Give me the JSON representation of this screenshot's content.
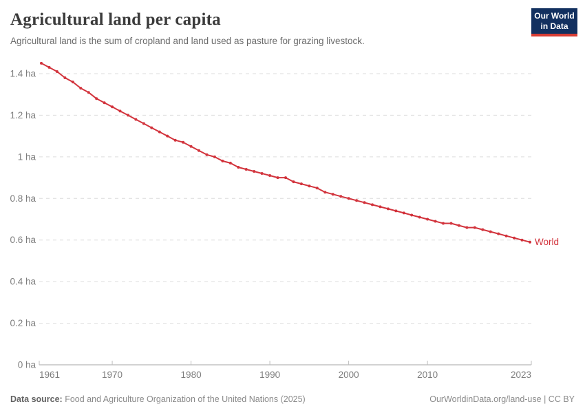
{
  "header": {
    "title": "Agricultural land per capita",
    "subtitle": "Agricultural land is the sum of cropland and land used as pasture for grazing livestock.",
    "logo": {
      "line1": "Our World",
      "line2": "in Data"
    }
  },
  "theme": {
    "title_color": "#3b3b3b",
    "subtitle_color": "#6b6b6b",
    "grid_color": "#dcdcdc",
    "axis_color": "#a5a5a5",
    "tick_color": "#bdbdbd",
    "tick_label_color": "#7d7d7d",
    "logo_bg": "#12305f",
    "logo_accent": "#d73c34",
    "footer_color": "#8a8a8a"
  },
  "chart_data": {
    "type": "line",
    "title": "Agricultural land per capita",
    "unit": "ha",
    "xlabel": "",
    "ylabel": "",
    "xlim": [
      1961,
      2023
    ],
    "ylim": [
      0,
      1.47
    ],
    "grid": "horizontal-dashed",
    "legend_position": "end-of-line-label",
    "x_ticks": [
      {
        "value": 1961,
        "label": "1961"
      },
      {
        "value": 1970,
        "label": "1970"
      },
      {
        "value": 1980,
        "label": "1980"
      },
      {
        "value": 1990,
        "label": "1990"
      },
      {
        "value": 2000,
        "label": "2000"
      },
      {
        "value": 2010,
        "label": "2010"
      },
      {
        "value": 2023,
        "label": "2023"
      }
    ],
    "y_ticks": [
      {
        "value": 0,
        "label": "0 ha"
      },
      {
        "value": 0.2,
        "label": "0.2 ha"
      },
      {
        "value": 0.4,
        "label": "0.4 ha"
      },
      {
        "value": 0.6,
        "label": "0.6 ha"
      },
      {
        "value": 0.8,
        "label": "0.8 ha"
      },
      {
        "value": 1,
        "label": "1 ha"
      },
      {
        "value": 1.2,
        "label": "1.2 ha"
      },
      {
        "value": 1.4,
        "label": "1.4 ha"
      }
    ],
    "series": [
      {
        "name": "World",
        "color": "#d2333c",
        "x": [
          1961,
          1962,
          1963,
          1964,
          1965,
          1966,
          1967,
          1968,
          1969,
          1970,
          1971,
          1972,
          1973,
          1974,
          1975,
          1976,
          1977,
          1978,
          1979,
          1980,
          1981,
          1982,
          1983,
          1984,
          1985,
          1986,
          1987,
          1988,
          1989,
          1990,
          1991,
          1992,
          1993,
          1994,
          1995,
          1996,
          1997,
          1998,
          1999,
          2000,
          2001,
          2002,
          2003,
          2004,
          2005,
          2006,
          2007,
          2008,
          2009,
          2010,
          2011,
          2012,
          2013,
          2014,
          2015,
          2016,
          2017,
          2018,
          2019,
          2020,
          2021,
          2022,
          2023
        ],
        "values": [
          1.45,
          1.43,
          1.41,
          1.38,
          1.36,
          1.33,
          1.31,
          1.28,
          1.26,
          1.24,
          1.22,
          1.2,
          1.18,
          1.16,
          1.14,
          1.12,
          1.1,
          1.08,
          1.07,
          1.05,
          1.03,
          1.01,
          1.0,
          0.98,
          0.97,
          0.95,
          0.94,
          0.93,
          0.92,
          0.91,
          0.9,
          0.9,
          0.88,
          0.87,
          0.86,
          0.85,
          0.83,
          0.82,
          0.81,
          0.8,
          0.79,
          0.78,
          0.77,
          0.76,
          0.75,
          0.74,
          0.73,
          0.72,
          0.71,
          0.7,
          0.69,
          0.68,
          0.68,
          0.67,
          0.66,
          0.66,
          0.65,
          0.64,
          0.63,
          0.62,
          0.61,
          0.6,
          0.59
        ]
      }
    ]
  },
  "footer": {
    "source_label": "Data source:",
    "source_value": " Food and Agriculture Organization of the United Nations (2025)",
    "url": "OurWorldinData.org/land-use",
    "divider": " | ",
    "license": "CC BY"
  }
}
